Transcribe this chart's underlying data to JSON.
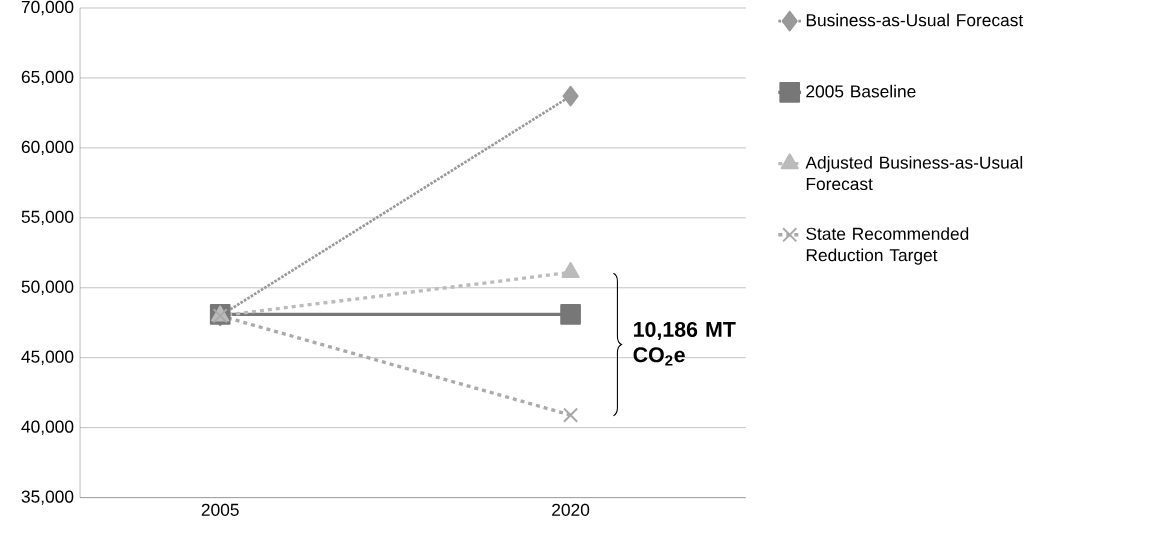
{
  "chart_data": {
    "type": "line",
    "categories": [
      "2005",
      "2020"
    ],
    "series": [
      {
        "name": "Business-as-Usual Forecast",
        "color": "#999999",
        "values": [
          48000,
          63700
        ],
        "marker": "diamond",
        "line_style": "dotted"
      },
      {
        "name": "2005 Baseline",
        "color": "#777777",
        "values": [
          48100,
          48100
        ],
        "marker": "square",
        "line_style": "solid"
      },
      {
        "name": "Adjusted Business-as-Usual Forecast",
        "color": "#bbbbbb",
        "values": [
          48000,
          51100
        ],
        "marker": "triangle",
        "line_style": "dashed"
      },
      {
        "name": "State Recommended Reduction Target",
        "color": "#aaaaaa",
        "values": [
          48000,
          40900
        ],
        "marker": "cross",
        "line_style": "dashed"
      }
    ],
    "ylim": [
      35000,
      70000
    ],
    "yticks": [
      {
        "value": 35000,
        "label": "35,000"
      },
      {
        "value": 40000,
        "label": "40,000"
      },
      {
        "value": 45000,
        "label": "45,000"
      },
      {
        "value": 50000,
        "label": "50,000"
      },
      {
        "value": 55000,
        "label": "55,000"
      },
      {
        "value": 60000,
        "label": "60,000"
      },
      {
        "value": 65000,
        "label": "65,000"
      },
      {
        "value": 70000,
        "label": "70,000"
      }
    ],
    "grid": "y",
    "legend": "right",
    "annotations": [
      "**10,186 MT CO$_{2}$e**"
    ]
  }
}
